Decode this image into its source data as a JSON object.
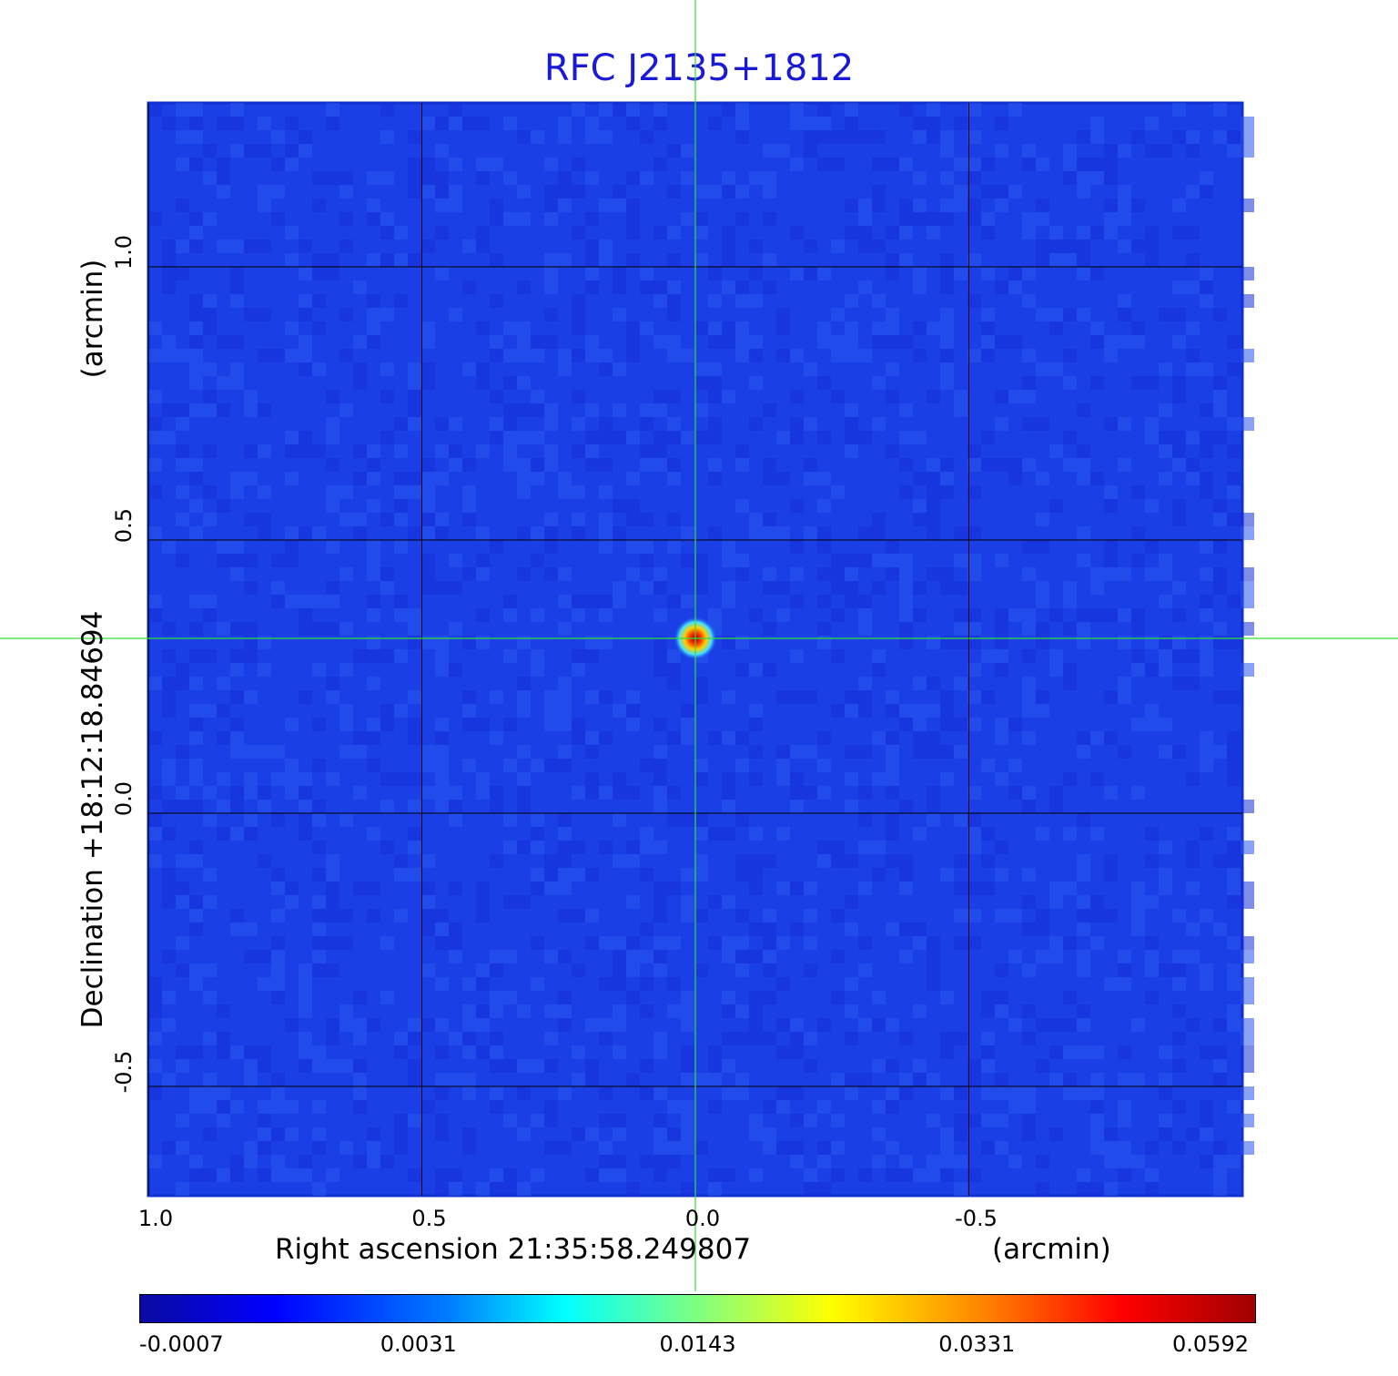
{
  "chart_data": {
    "type": "heatmap",
    "title": "RFC J2135+1812",
    "xlabel": "Right ascension  21:35:58.249807",
    "xunit": "(arcmin)",
    "ylabel": "Declination  +18:12:18.84694",
    "yunit": "(arcmin)",
    "xlim": [
      1.0,
      -1.0
    ],
    "ylim": [
      -0.7,
      1.3
    ],
    "x_ticks": [
      "1.0",
      "0.5",
      "0.0",
      "-0.5"
    ],
    "x_tick_values": [
      1.0,
      0.5,
      0.0,
      -0.5
    ],
    "y_ticks": [
      "-0.5",
      "0.0",
      "0.5",
      "1.0"
    ],
    "y_tick_values": [
      -0.5,
      0.0,
      0.5,
      1.0
    ],
    "grid": true,
    "source": {
      "x": 0.0,
      "y": 0.32,
      "peak": 0.0592
    },
    "crosshair": {
      "x": 0.0,
      "y": 0.32
    },
    "colorbar": {
      "ticks": [
        "-0.0007",
        "0.0031",
        "0.0143",
        "0.0331",
        "0.0592"
      ],
      "colormap": "jet"
    },
    "colors": {
      "title": "#1a1ad6",
      "background_map": "#1a3fe6",
      "crosshair": "#33e033",
      "grid": "#000000"
    }
  }
}
